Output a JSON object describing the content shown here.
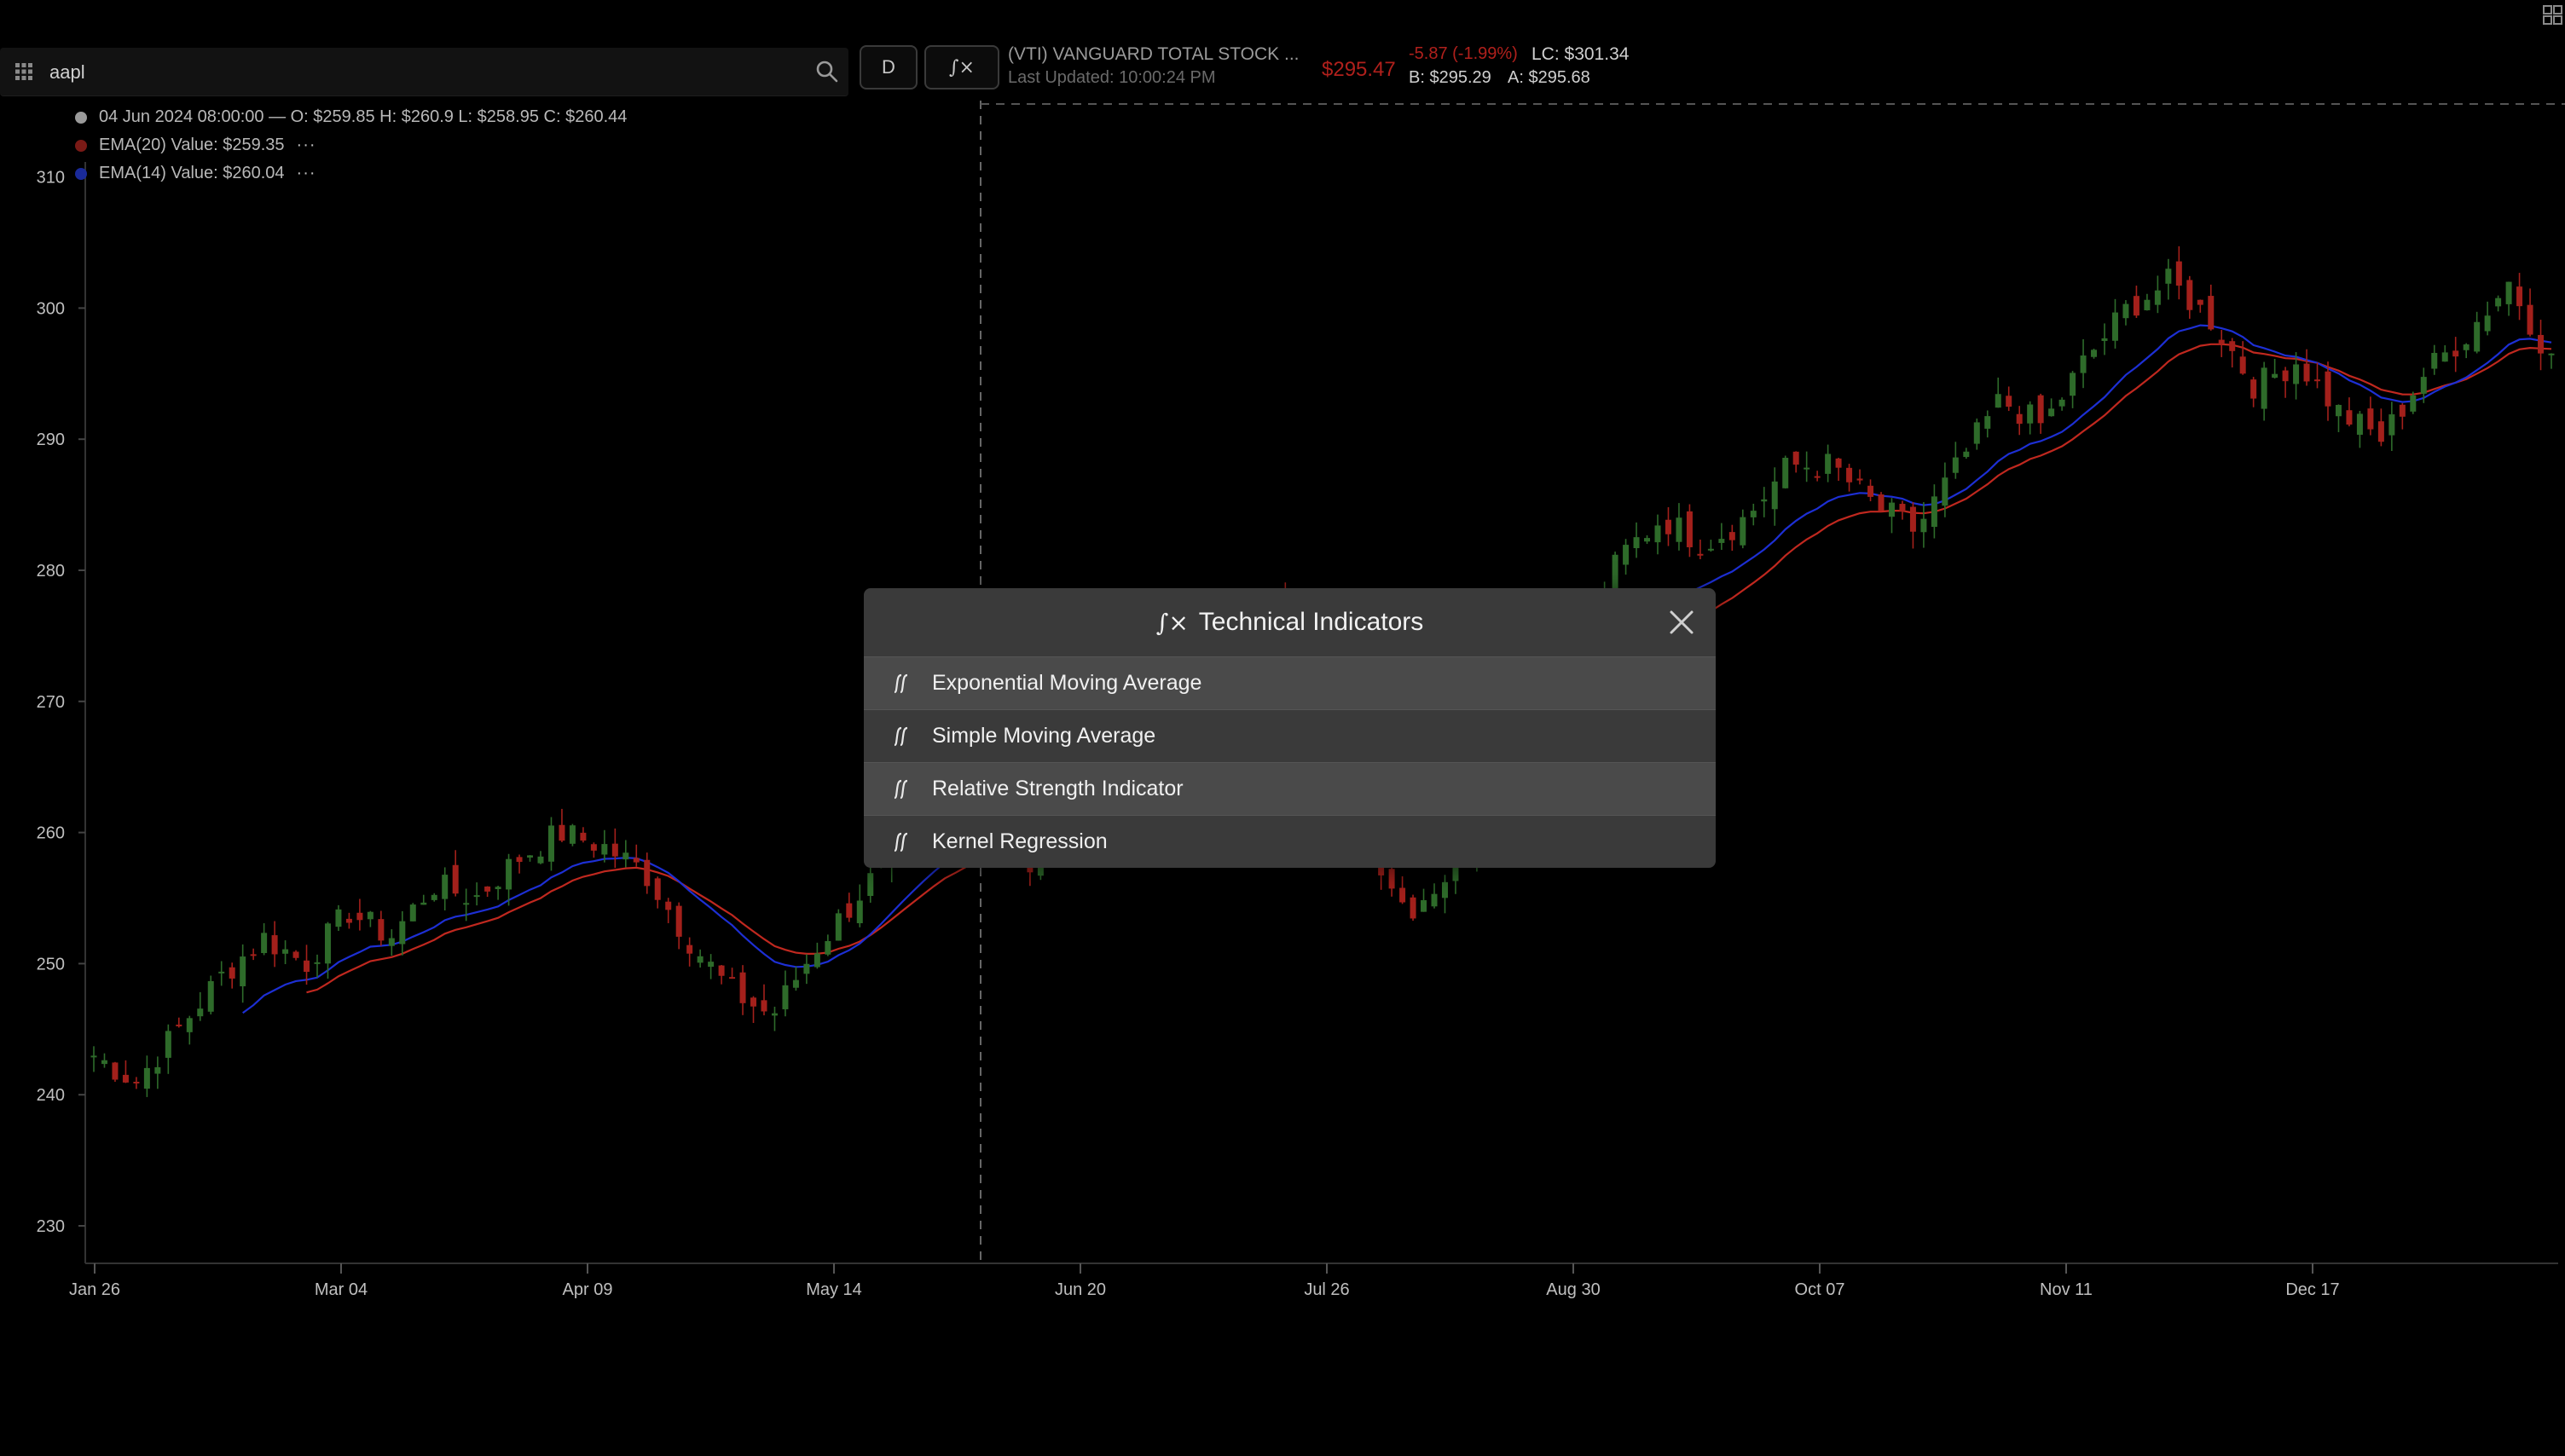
{
  "toolbar": {
    "search_value": "aapl",
    "interval_label": "D",
    "indicators_label": "∫×"
  },
  "quote": {
    "name": "(VTI) VANGUARD TOTAL STOCK ...",
    "last_updated": "Last Updated: 10:00:24 PM",
    "price": "$295.47",
    "change": "-5.87 (-1.99%)",
    "last_close": "LC: $301.34",
    "bid": "B: $295.29",
    "ask": "A: $295.68"
  },
  "legend": {
    "ohlc": "04 Jun 2024 08:00:00 — O: $259.85 H: $260.9 L: $258.95 C: $260.44",
    "ema20": "EMA(20) Value: $259.35",
    "ema14": "EMA(14) Value: $260.04",
    "more": "···"
  },
  "colors": {
    "up": "#2e6b2a",
    "down": "#a3201b",
    "ema20": "#c0281f",
    "ema14": "#1d2fd4",
    "ohlc_dot": "#9a9a9a"
  },
  "modal": {
    "icon": "∫×",
    "title": "Technical Indicators",
    "items": [
      "Exponential Moving Average",
      "Simple Moving Average",
      "Relative Strength Indicator",
      "Kernel Regression"
    ]
  },
  "chart_data": {
    "type": "candlestick",
    "ylim": [
      227,
      313
    ],
    "y_ticks": [
      230,
      240,
      250,
      260,
      270,
      280,
      290,
      300,
      310
    ],
    "x_ticks": [
      "Jan 26",
      "Mar 04",
      "Apr 09",
      "May 14",
      "Jun 20",
      "Jul 26",
      "Aug 30",
      "Oct 07",
      "Nov 11",
      "Dec 17"
    ],
    "close_path": [
      243,
      241,
      245,
      249,
      252,
      250,
      254,
      252,
      256,
      255,
      258,
      260,
      259,
      257,
      252,
      248,
      246,
      251,
      255,
      259,
      262,
      262,
      257,
      262,
      265,
      268,
      274,
      276,
      277,
      274,
      260,
      254,
      257,
      262,
      266,
      273,
      281,
      284,
      282,
      284,
      288,
      288,
      285,
      283,
      288,
      293,
      291,
      296,
      300,
      302,
      299,
      294,
      296,
      292,
      290,
      295,
      298,
      302,
      296
    ],
    "crosshair_date": "04 Jun 2024",
    "crosshair_price": 260.44
  }
}
